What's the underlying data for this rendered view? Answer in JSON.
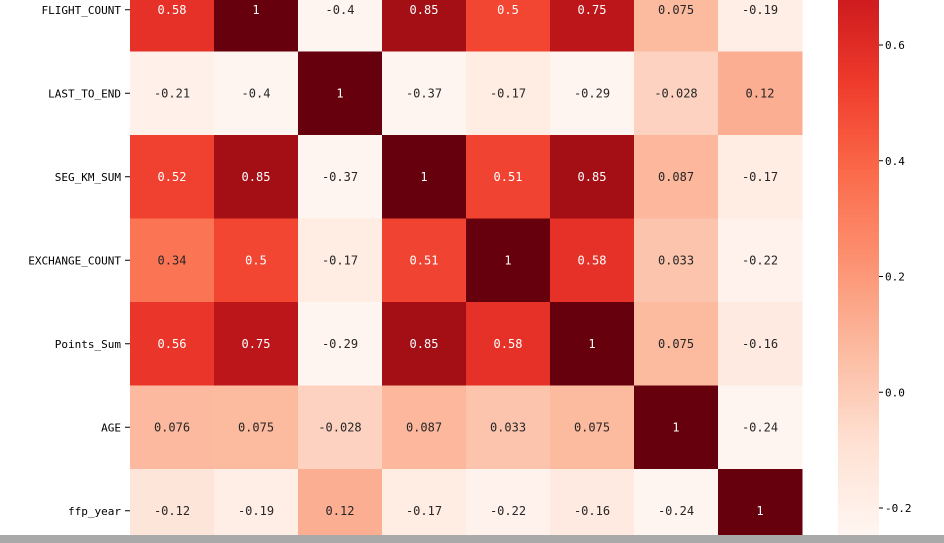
{
  "chart_data": {
    "type": "heatmap",
    "rows": [
      "FLIGHT_COUNT",
      "LAST_TO_END",
      "SEG_KM_SUM",
      "EXCHANGE_COUNT",
      "Points_Sum",
      "AGE",
      "ffp_year"
    ],
    "matrix": [
      [
        0.58,
        1,
        -0.4,
        0.85,
        0.5,
        0.75,
        0.075,
        -0.19
      ],
      [
        -0.21,
        -0.4,
        1,
        -0.37,
        -0.17,
        -0.29,
        -0.028,
        0.12
      ],
      [
        0.52,
        0.85,
        -0.37,
        1,
        0.51,
        0.85,
        0.087,
        -0.17
      ],
      [
        0.34,
        0.5,
        -0.17,
        0.51,
        1,
        0.58,
        0.033,
        -0.22
      ],
      [
        0.56,
        0.75,
        -0.29,
        0.85,
        0.58,
        1,
        0.075,
        -0.16
      ],
      [
        0.076,
        0.075,
        -0.028,
        0.087,
        0.033,
        0.075,
        1,
        -0.24
      ],
      [
        -0.12,
        -0.19,
        0.12,
        -0.17,
        -0.22,
        -0.16,
        -0.24,
        1
      ]
    ],
    "cell_text": [
      [
        "0.58",
        "1",
        "-0.4",
        "0.85",
        "0.5",
        "0.75",
        "0.075",
        "-0.19"
      ],
      [
        "-0.21",
        "-0.4",
        "1",
        "-0.37",
        "-0.17",
        "-0.29",
        "-0.028",
        "0.12"
      ],
      [
        "0.52",
        "0.85",
        "-0.37",
        "1",
        "0.51",
        "0.85",
        "0.087",
        "-0.17"
      ],
      [
        "0.34",
        "0.5",
        "-0.17",
        "0.51",
        "1",
        "0.58",
        "0.033",
        "-0.22"
      ],
      [
        "0.56",
        "0.75",
        "-0.29",
        "0.85",
        "0.58",
        "1",
        "0.075",
        "-0.16"
      ],
      [
        "0.076",
        "0.075",
        "-0.028",
        "0.087",
        "0.033",
        "0.075",
        "1",
        "-0.24"
      ],
      [
        "-0.12",
        "-0.19",
        "0.12",
        "-0.17",
        "-0.22",
        "-0.16",
        "-0.24",
        "1"
      ]
    ],
    "colormap": "Reds",
    "vmin": -0.24,
    "vmax": 1,
    "colorbar_ticks": [
      0.6,
      0.4,
      0.2,
      0.0,
      -0.2
    ],
    "colorbar_tick_labels": [
      "0.6",
      "0.4",
      "0.2",
      "0.0",
      "-0.2"
    ],
    "legend_position": "right"
  }
}
